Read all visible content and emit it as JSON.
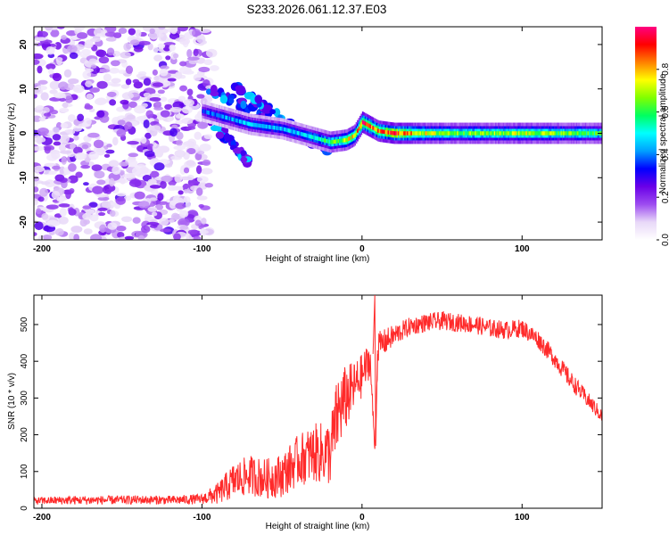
{
  "figure": {
    "title": "S233.2026.061.12.37.E03"
  },
  "chart_data": [
    {
      "type": "heatmap",
      "name": "spectrogram",
      "xlabel": "Height of straight line (km)",
      "ylabel": "Frequency (Hz)",
      "xlim": [
        -205,
        150
      ],
      "ylim": [
        -24,
        24
      ],
      "xticks": [
        -200,
        -100,
        0,
        100
      ],
      "yticks": [
        -20,
        -10,
        0,
        10,
        20
      ],
      "colorbar": {
        "label": "Normalized spectral amplitude",
        "range": [
          0,
          1
        ],
        "ticks": [
          0.0,
          0.2,
          0.4,
          0.6,
          0.8
        ],
        "tick_labels": [
          "0.0",
          "0.2",
          "0.4",
          "0.6",
          "0.8"
        ],
        "colors": [
          "#ffffff",
          "#e8d8f8",
          "#9d4cf0",
          "#6a00e8",
          "#0000ff",
          "#00a0ff",
          "#00ffff",
          "#00ff60",
          "#80ff00",
          "#ffff00",
          "#ff8000",
          "#ff0000",
          "#ff0080"
        ]
      },
      "noise_region": {
        "x_range": [
          -205,
          -100
        ],
        "freq_range": [
          -24,
          24
        ],
        "amplitude_range": [
          0.05,
          0.28
        ]
      },
      "ridge": {
        "description": "dominant spectral line vs height",
        "x": [
          -100,
          -90,
          -80,
          -70,
          -60,
          -50,
          -40,
          -30,
          -20,
          -10,
          -5,
          0,
          5,
          10,
          20,
          40,
          60,
          80,
          100,
          120,
          150
        ],
        "freq": [
          5,
          4,
          3,
          2,
          1.5,
          1,
          0,
          -1,
          -2,
          -1.5,
          -0.5,
          2.5,
          1.5,
          0.5,
          0,
          0,
          0,
          0,
          0,
          0,
          0
        ],
        "amplitude": [
          0.35,
          0.4,
          0.42,
          0.45,
          0.45,
          0.45,
          0.45,
          0.5,
          0.6,
          0.7,
          0.75,
          0.9,
          0.85,
          0.8,
          0.9,
          0.7,
          0.65,
          0.65,
          0.7,
          0.65,
          0.6
        ]
      },
      "diagonal_streaks": [
        {
          "x_start": -100,
          "freq_start": 11,
          "x_end": -30,
          "freq_end": -2
        },
        {
          "x_start": -80,
          "freq_start": 11,
          "x_end": -20,
          "freq_end": -5
        },
        {
          "x_start": -95,
          "freq_start": 3,
          "x_end": -70,
          "freq_end": -7
        }
      ]
    },
    {
      "type": "line",
      "name": "snr",
      "xlabel": "Height of straight line (km)",
      "ylabel": "SNR (10 * v/v)",
      "xlim": [
        -205,
        150
      ],
      "ylim": [
        0,
        580
      ],
      "xticks": [
        -200,
        -100,
        0,
        100
      ],
      "yticks": [
        0,
        100,
        200,
        300,
        400,
        500
      ],
      "color": "#ff2a2a",
      "series": [
        {
          "name": "SNR",
          "x": [
            -205,
            -180,
            -160,
            -140,
            -120,
            -100,
            -90,
            -80,
            -70,
            -60,
            -50,
            -40,
            -30,
            -20,
            -15,
            -10,
            -5,
            0,
            5,
            8,
            10,
            20,
            30,
            40,
            50,
            60,
            70,
            80,
            90,
            100,
            110,
            120,
            130,
            140,
            150
          ],
          "y": [
            20,
            22,
            22,
            23,
            22,
            25,
            40,
            75,
            90,
            80,
            90,
            130,
            150,
            150,
            260,
            300,
            330,
            360,
            410,
            160,
            440,
            470,
            495,
            505,
            510,
            505,
            500,
            490,
            485,
            490,
            460,
            410,
            350,
            300,
            250
          ],
          "spread": [
            10,
            12,
            12,
            12,
            12,
            14,
            30,
            50,
            55,
            55,
            60,
            70,
            80,
            90,
            110,
            90,
            70,
            60,
            50,
            10,
            40,
            30,
            25,
            25,
            25,
            25,
            25,
            25,
            25,
            25,
            25,
            25,
            25,
            22,
            20
          ]
        }
      ]
    }
  ]
}
